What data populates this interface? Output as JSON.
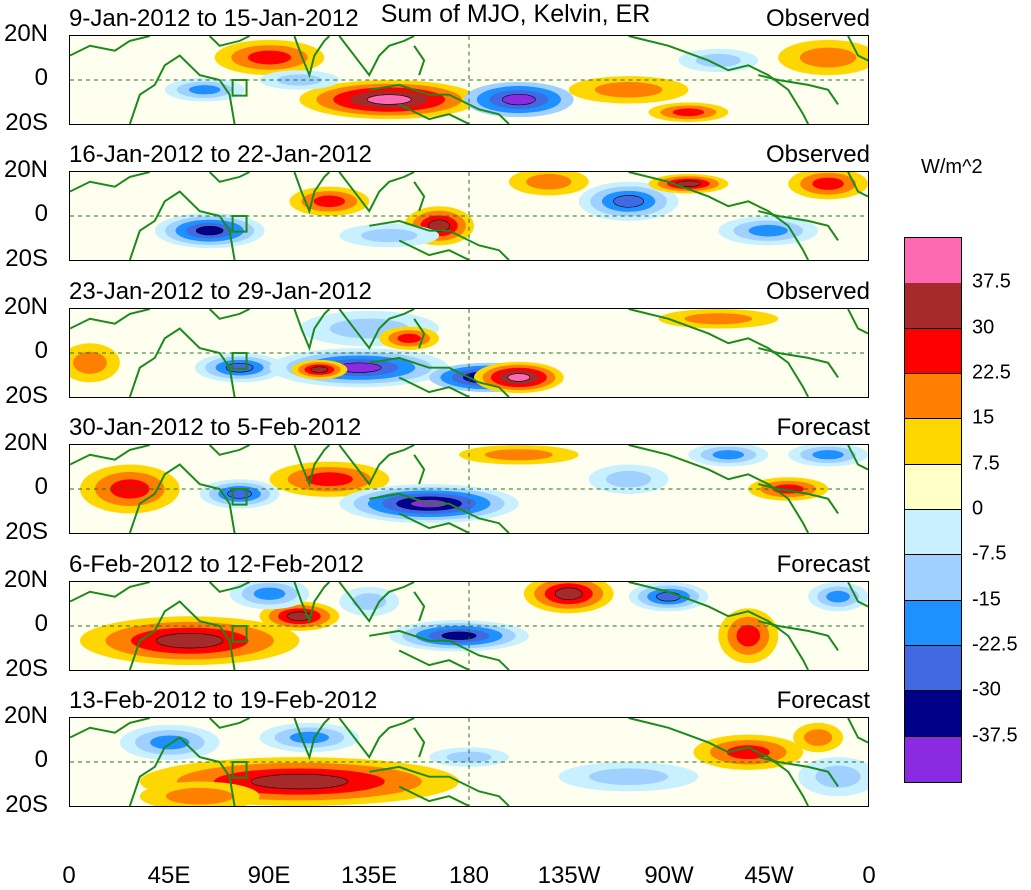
{
  "title": "Sum of MJO, Kelvin, ER",
  "units": "W/m^2",
  "lat_labels": [
    "20N",
    "0",
    "20S"
  ],
  "lon_labels": [
    "0",
    "45E",
    "90E",
    "135E",
    "180",
    "135W",
    "90W",
    "45W",
    "0"
  ],
  "panels": [
    {
      "date_range": "9-Jan-2012 to 15-Jan-2012",
      "kind": "Observed"
    },
    {
      "date_range": "16-Jan-2012 to 22-Jan-2012",
      "kind": "Observed"
    },
    {
      "date_range": "23-Jan-2012 to 29-Jan-2012",
      "kind": "Observed"
    },
    {
      "date_range": "30-Jan-2012 to 5-Feb-2012",
      "kind": "Forecast"
    },
    {
      "date_range": "6-Feb-2012 to 12-Feb-2012",
      "kind": "Forecast"
    },
    {
      "date_range": "13-Feb-2012 to 19-Feb-2012",
      "kind": "Forecast"
    }
  ],
  "colorbar": {
    "labels": [
      "37.5",
      "30",
      "22.5",
      "15",
      "7.5",
      "0",
      "-7.5",
      "-15",
      "-22.5",
      "-30",
      "-37.5"
    ],
    "colors": [
      "#ff69b4",
      "#a52a2a",
      "#ff0000",
      "#ff7f00",
      "#ffd700",
      "#ffffc8",
      "#c8f0ff",
      "#a0d0ff",
      "#1e90ff",
      "#4169e1",
      "#00008b",
      "#8a2be2"
    ]
  }
}
